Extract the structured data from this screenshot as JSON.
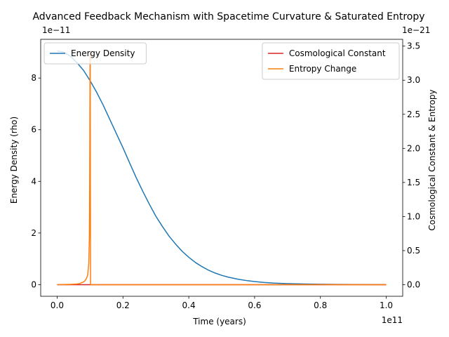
{
  "chart_data": {
    "type": "line",
    "title": "Advanced Feedback Mechanism with Spacetime Curvature & Saturated Entropy",
    "xlabel": "Time (years)",
    "x_offset_label": "1e11",
    "xlim": [
      -0.05,
      1.05
    ],
    "x_ticks": [
      0.0,
      0.2,
      0.4,
      0.6,
      0.8,
      1.0
    ],
    "x_tick_labels": [
      "0.0",
      "0.2",
      "0.4",
      "0.6",
      "0.8",
      "1.0"
    ],
    "left_axis": {
      "label": "Energy Density (rho)",
      "label_color": "#1f77b4",
      "offset_label": "1e−11",
      "ylim": [
        -0.45,
        9.5
      ],
      "ticks": [
        0,
        2,
        4,
        6,
        8
      ],
      "tick_labels": [
        "0",
        "2",
        "4",
        "6",
        "8"
      ]
    },
    "right_axis": {
      "label": "Cosmological Constant & Entropy",
      "label_color": "#d62728",
      "offset_label": "1e−21",
      "ylim": [
        -0.17,
        3.6
      ],
      "ticks": [
        0.0,
        0.5,
        1.0,
        1.5,
        2.0,
        2.5,
        3.0,
        3.5
      ],
      "tick_labels": [
        "0.0",
        "0.5",
        "1.0",
        "1.5",
        "2.0",
        "2.5",
        "3.0",
        "3.5"
      ]
    },
    "series": [
      {
        "name": "Energy Density",
        "axis": "left",
        "color": "#1f77b4",
        "x": [
          0.0,
          0.02,
          0.04,
          0.06,
          0.08,
          0.1,
          0.12,
          0.14,
          0.16,
          0.18,
          0.2,
          0.22,
          0.24,
          0.26,
          0.28,
          0.3,
          0.32,
          0.34,
          0.36,
          0.38,
          0.4,
          0.42,
          0.44,
          0.46,
          0.48,
          0.5,
          0.52,
          0.55,
          0.58,
          0.6,
          0.63,
          0.66,
          0.7,
          0.75,
          0.8,
          0.85,
          0.9,
          0.95,
          1.0
        ],
        "y": [
          9.05,
          9.0,
          8.85,
          8.6,
          8.3,
          7.9,
          7.45,
          6.95,
          6.4,
          5.85,
          5.3,
          4.72,
          4.15,
          3.62,
          3.12,
          2.65,
          2.25,
          1.88,
          1.57,
          1.29,
          1.06,
          0.86,
          0.7,
          0.56,
          0.45,
          0.36,
          0.29,
          0.21,
          0.15,
          0.12,
          0.085,
          0.06,
          0.04,
          0.025,
          0.015,
          0.01,
          0.006,
          0.003,
          0.002
        ]
      },
      {
        "name": "Cosmological Constant",
        "axis": "right",
        "color": "#d62728",
        "x": [
          0.0,
          1.0
        ],
        "y": [
          0.0,
          0.0
        ]
      },
      {
        "name": "Entropy Change",
        "axis": "right",
        "color": "#ff7f0e",
        "x": [
          0.0,
          0.04,
          0.06,
          0.07,
          0.08,
          0.085,
          0.09,
          0.093,
          0.096,
          0.098,
          0.099,
          0.1,
          0.1005,
          0.1015,
          0.103,
          0.2,
          0.4,
          0.6,
          0.8,
          1.0
        ],
        "y": [
          0.0,
          0.005,
          0.01,
          0.02,
          0.04,
          0.06,
          0.1,
          0.15,
          0.3,
          0.7,
          1.6,
          3.4,
          3.4,
          0.0,
          0.0,
          0.0,
          0.0,
          0.0,
          0.0,
          0.0
        ]
      }
    ],
    "legends": [
      {
        "placement": "upper-left",
        "entries": [
          "Energy Density"
        ]
      },
      {
        "placement": "upper-right",
        "entries": [
          "Cosmological Constant",
          "Entropy Change"
        ]
      }
    ]
  }
}
